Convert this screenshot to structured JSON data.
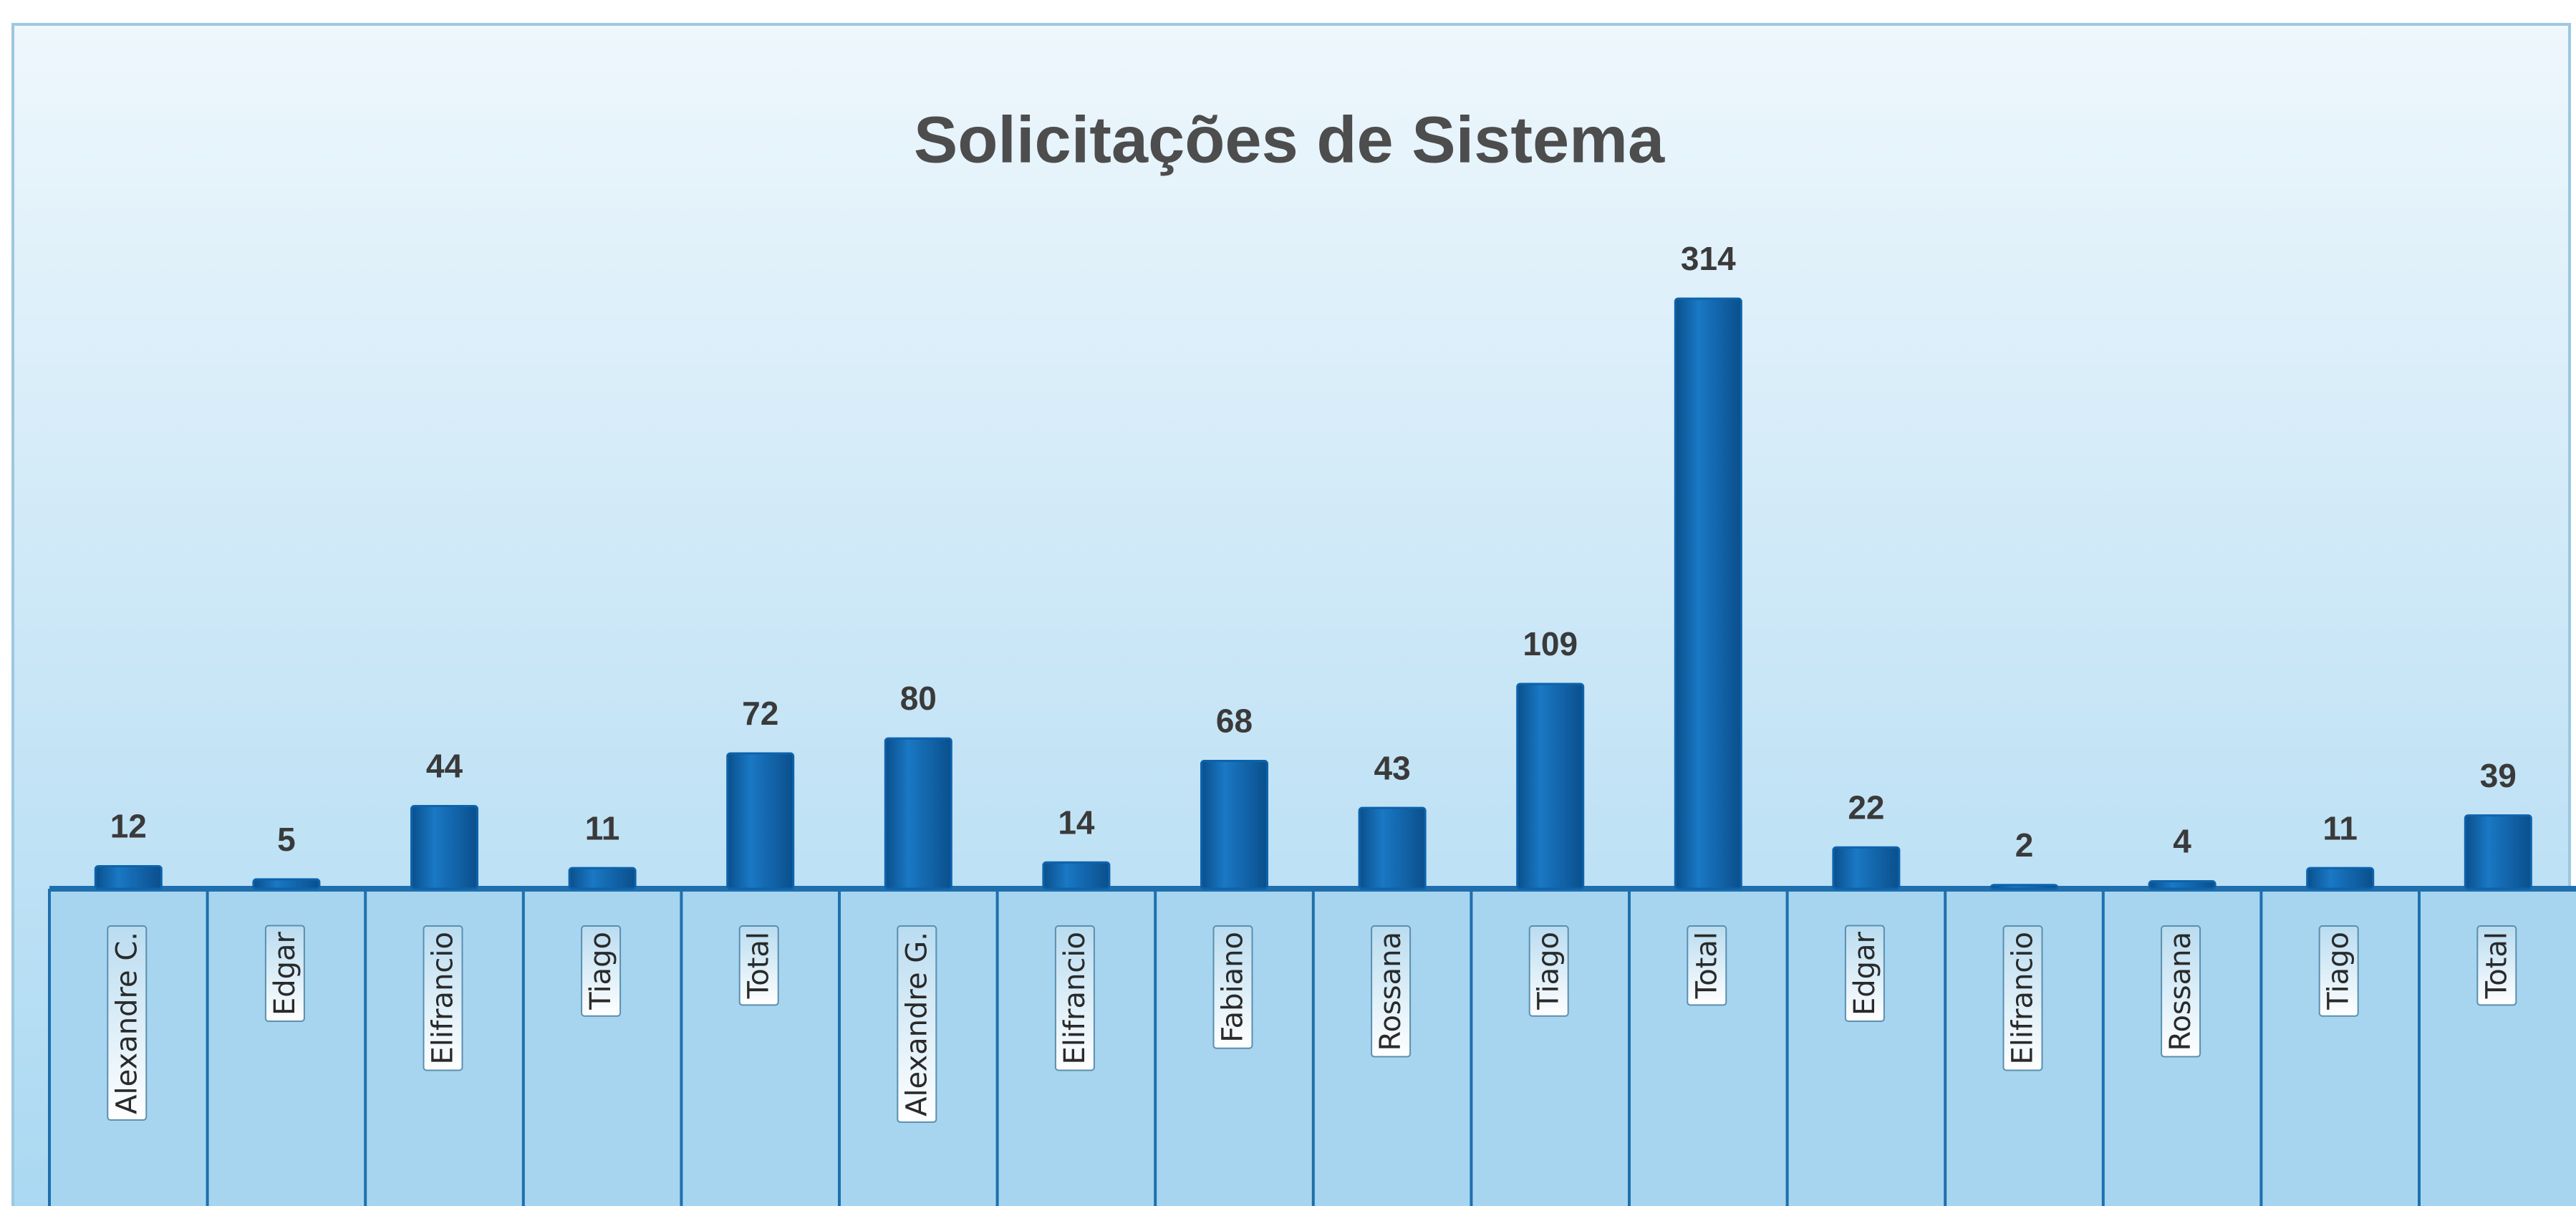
{
  "chart_data": {
    "type": "bar",
    "title": "Solicitações de Sistema",
    "categories": [
      "Alexandre C.",
      "Edgar",
      "Elifrancio",
      "Tiago",
      "Total",
      "Alexandre G.",
      "Elifrancio",
      "Fabiano",
      "Rossana",
      "Tiago",
      "Total",
      "Edgar",
      "Elifrancio",
      "Rossana",
      "Tiago",
      "Total"
    ],
    "values": [
      12,
      5,
      44,
      11,
      72,
      80,
      14,
      68,
      43,
      109,
      314,
      22,
      2,
      4,
      11,
      39
    ],
    "color": "#0d63ab"
  }
}
